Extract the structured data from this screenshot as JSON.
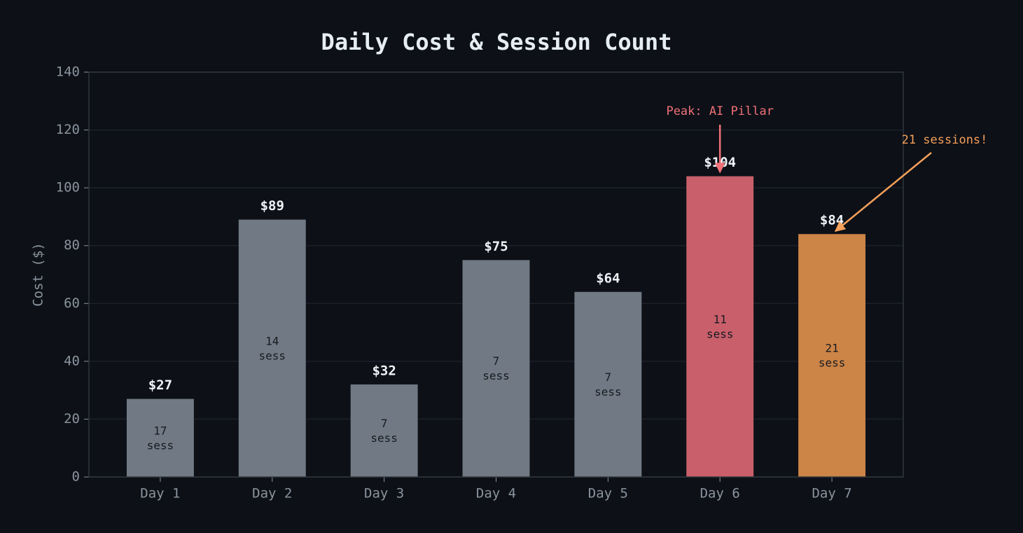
{
  "chart_data": {
    "type": "bar",
    "title": "Daily Cost & Session Count",
    "y_label": "Cost ($)",
    "categories": [
      "Day 1",
      "Day 2",
      "Day 3",
      "Day 4",
      "Day 5",
      "Day 6",
      "Day 7"
    ],
    "values": [
      27,
      89,
      32,
      75,
      64,
      104,
      84
    ],
    "value_labels": [
      "$27",
      "$89",
      "$32",
      "$75",
      "$64",
      "$104",
      "$84"
    ],
    "sessions": [
      17,
      14,
      7,
      7,
      7,
      11,
      21
    ],
    "sessions_unit": "sess",
    "colors": [
      "#717a84",
      "#717a84",
      "#717a84",
      "#717a84",
      "#717a84",
      "#c95f6b",
      "#cc8447"
    ],
    "ylim": [
      0,
      140
    ],
    "yticks": [
      0,
      20,
      40,
      60,
      80,
      100,
      120,
      140
    ],
    "grid": true,
    "annotations": [
      {
        "text": "Peak: AI Pillar",
        "color": "#f07178"
      },
      {
        "text": "21 sessions!",
        "color": "#f5a05a"
      }
    ]
  }
}
